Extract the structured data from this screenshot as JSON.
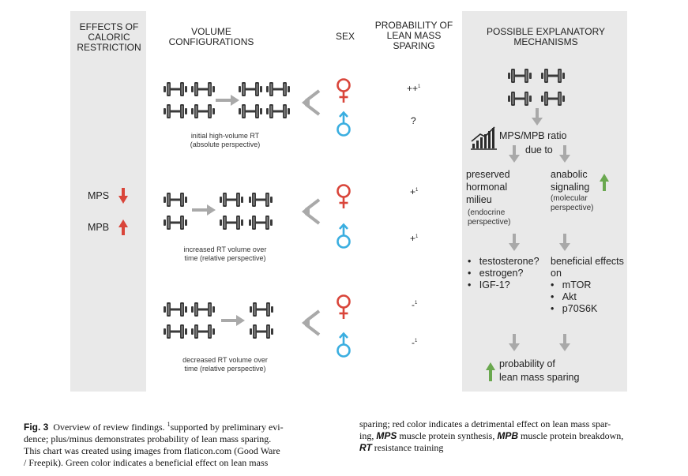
{
  "headers": {
    "effects": "EFFECTS OF CALORIC RESTRICTION",
    "volume": "VOLUME CONFIGURATIONS",
    "sex": "SEX",
    "probability": "PROBABILITY OF LEAN MASS SPARING",
    "mechanisms": "POSSIBLE EXPLANATORY MECHANISMS"
  },
  "effects": {
    "mps": "MPS",
    "mpb": "MPB"
  },
  "rows": [
    {
      "caption_line1": "initial high-volume RT",
      "caption_line2": "(absolute perspective)",
      "prob_female": "++",
      "prob_female_sup": "1",
      "prob_male": "?",
      "prob_male_sup": ""
    },
    {
      "caption_line1": "increased RT volume over",
      "caption_line2": "time (relative perspective)",
      "prob_female": "+",
      "prob_female_sup": "1",
      "prob_male": "+",
      "prob_male_sup": "1"
    },
    {
      "caption_line1": "decreased RT volume over",
      "caption_line2": "time (relative perspective)",
      "prob_female": "-",
      "prob_female_sup": "1",
      "prob_male": "-",
      "prob_male_sup": "1"
    }
  ],
  "mechanisms": {
    "ratio": "MPS/MPB ratio",
    "due_to": "due to",
    "hormonal_1": "preserved",
    "hormonal_2": "hormonal",
    "hormonal_3": "milieu",
    "hormonal_sub_1": "(endocrine",
    "hormonal_sub_2": "perspective)",
    "anabolic_1": "anabolic",
    "anabolic_2": "signaling",
    "anabolic_sub_1": "(molecular",
    "anabolic_sub_2": "perspective)",
    "hormones": [
      "testosterone?",
      "estrogen?",
      "IGF-1?"
    ],
    "effects_1": "beneficial effects",
    "effects_2": "on",
    "effects_list": [
      "mTOR",
      "Akt",
      "p70S6K"
    ],
    "outcome_1": "probability of",
    "outcome_2": "lean mass sparing"
  },
  "caption": {
    "label": "Fig. 3",
    "col1_l1": "Overview of review findings. ",
    "col1_sup": "1",
    "col1_l1b": "supported by preliminary evi-",
    "col1_l2": "dence; plus/minus demonstrates probability of lean mass sparing.",
    "col1_l3": "This chart was created using images from flaticon.com (Good Ware",
    "col1_l4": "/ Freepik). Green color indicates a beneficial effect on lean mass",
    "col2_l1": "sparing; red color indicates a detrimental effect on lean mass spar-",
    "col2_l2a": "ing, ",
    "col2_mps": "MPS",
    "col2_l2b": " muscle protein synthesis, ",
    "col2_mpb": "MPB",
    "col2_l2c": " muscle protein breakdown,",
    "col2_rt": "RT",
    "col2_l3b": " resistance training"
  },
  "colors": {
    "red": "#d9453a",
    "green": "#6aa84f",
    "blue": "#3aaee0",
    "arrow_gray": "#a9a9a9",
    "panel": "#e9e9e9",
    "dumbbell": "#3a3a3a"
  }
}
